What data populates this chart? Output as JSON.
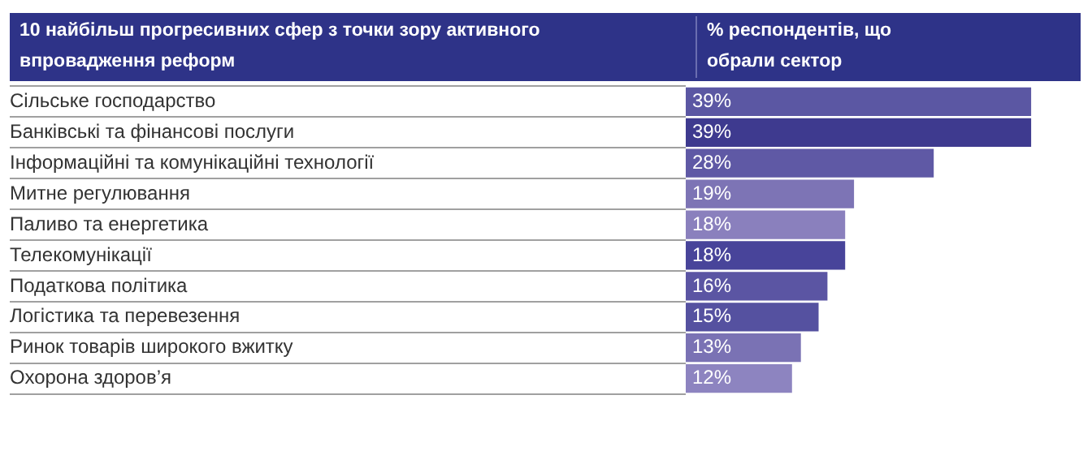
{
  "chart_data": {
    "type": "bar",
    "orientation": "horizontal",
    "title": "10 найбільш прогресивних сфер з точки зору активного впровадження реформ",
    "xlabel": "% респондентів, що обрали сектор",
    "categories": [
      "Сільське господарство",
      "Банківські та фінансові послуги",
      "Інформаційні та комунікаційні технології",
      "Митне регулювання",
      "Паливо та енергетика",
      "Телекомунікації",
      "Податкова політика",
      "Логістика та перевезення",
      "Ринок товарів широкого вжитку",
      "Охорона здоров’я"
    ],
    "values": [
      39,
      39,
      28,
      19,
      18,
      18,
      16,
      15,
      13,
      12
    ],
    "colors": [
      "#5b57a3",
      "#3e3a8f",
      "#5f59a5",
      "#7d74b5",
      "#8a80bd",
      "#48449a",
      "#5b55a3",
      "#5551a0",
      "#7a72b4",
      "#8d84c0"
    ],
    "value_labels": [
      "39%",
      "39%",
      "28%",
      "19%",
      "18%",
      "18%",
      "16%",
      "15%",
      "13%",
      "12%"
    ],
    "tick_labels": "y",
    "legend": false
  }
}
